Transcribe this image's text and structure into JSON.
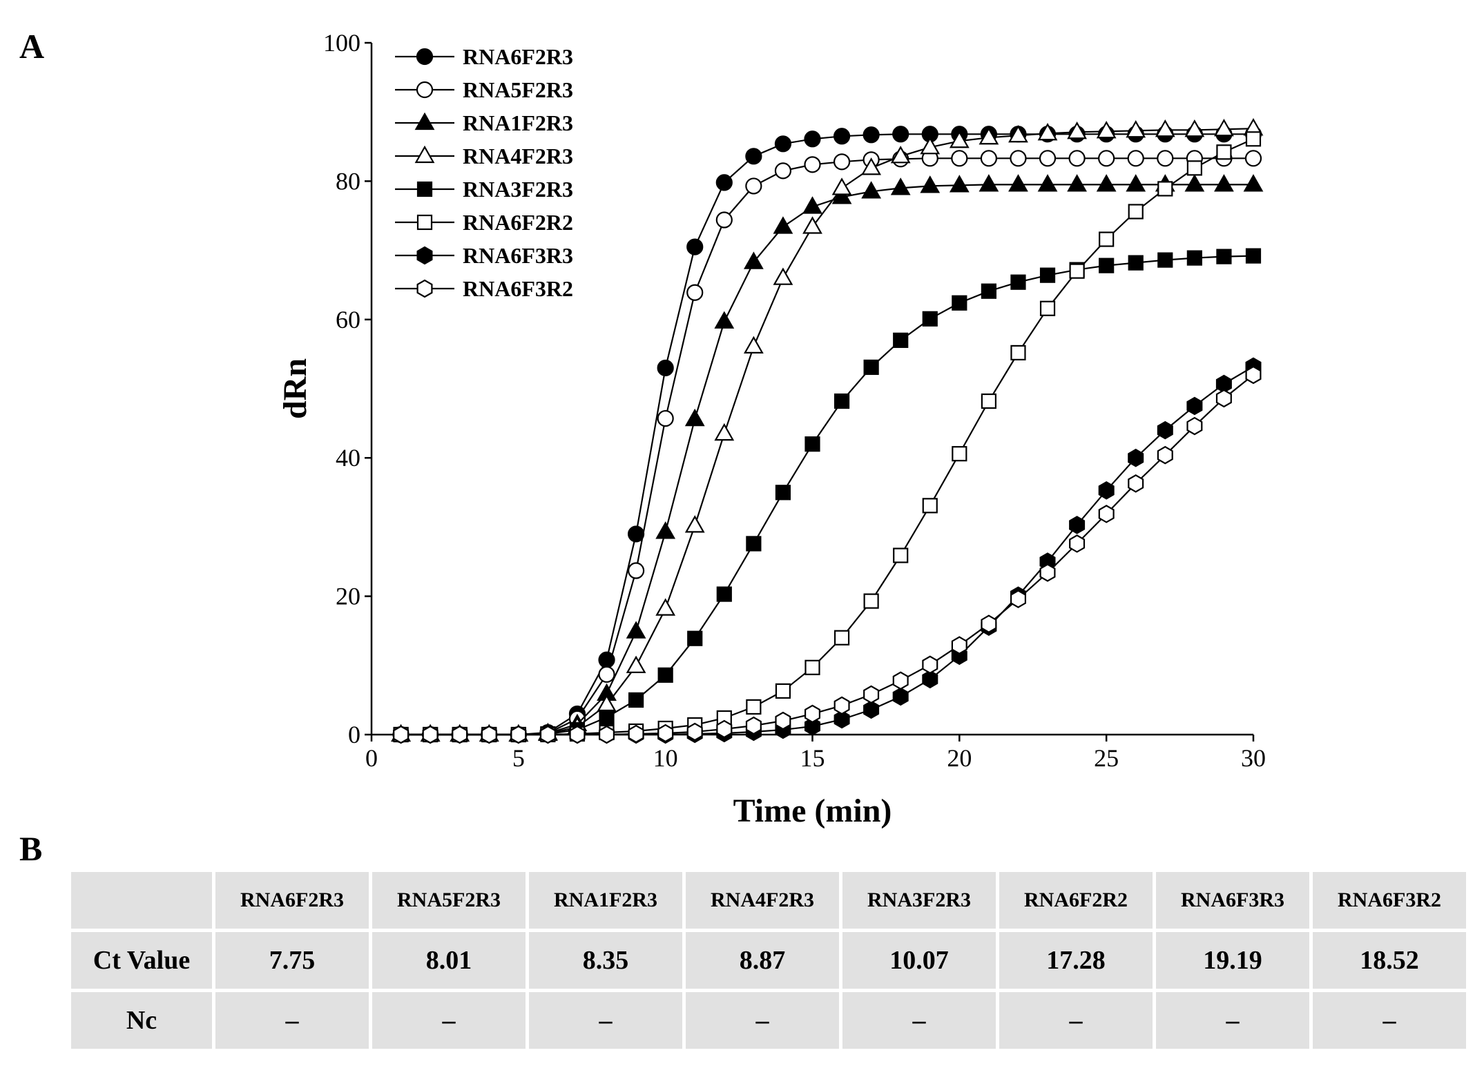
{
  "panels": {
    "a": "A",
    "b": "B"
  },
  "chart_data": {
    "type": "line",
    "title": "",
    "xlabel": "Time (min)",
    "ylabel": "dRn",
    "xlim": [
      0,
      30
    ],
    "ylim": [
      0,
      100
    ],
    "x_ticks": [
      0,
      5,
      10,
      15,
      20,
      25,
      30
    ],
    "y_ticks": [
      0,
      20,
      40,
      60,
      80,
      100
    ],
    "grid": false,
    "legend_position": "top-left",
    "x": [
      1,
      2,
      3,
      4,
      5,
      6,
      7,
      8,
      9,
      10,
      11,
      12,
      13,
      14,
      15,
      16,
      17,
      18,
      19,
      20,
      21,
      22,
      23,
      24,
      25,
      26,
      27,
      28,
      29,
      30
    ],
    "series": [
      {
        "name": "RNA6F2R3",
        "marker": "circle",
        "filled": true,
        "values": [
          0,
          0,
          0,
          0,
          0,
          0.3,
          3,
          10.8,
          29,
          53,
          70.5,
          79.8,
          83.6,
          85.4,
          86.1,
          86.5,
          86.7,
          86.8,
          86.8,
          86.8,
          86.8,
          86.8,
          86.8,
          86.8,
          86.8,
          86.8,
          86.8,
          86.8,
          86.8,
          86.8
        ]
      },
      {
        "name": "RNA5F2R3",
        "marker": "circle",
        "filled": false,
        "values": [
          0,
          0,
          0,
          0,
          0,
          0.2,
          2.3,
          8.7,
          23.7,
          45.7,
          63.9,
          74.4,
          79.3,
          81.5,
          82.4,
          82.8,
          83.1,
          83.2,
          83.3,
          83.3,
          83.3,
          83.3,
          83.3,
          83.3,
          83.3,
          83.3,
          83.3,
          83.3,
          83.3,
          83.3
        ]
      },
      {
        "name": "RNA1F2R3",
        "marker": "triangle",
        "filled": true,
        "values": [
          0,
          0,
          0,
          0,
          0,
          0.2,
          1.5,
          5.9,
          14.9,
          29.3,
          45.6,
          59.7,
          68.3,
          73.4,
          76.3,
          77.7,
          78.5,
          79,
          79.3,
          79.4,
          79.5,
          79.5,
          79.5,
          79.5,
          79.5,
          79.5,
          79.5,
          79.5,
          79.5,
          79.5
        ]
      },
      {
        "name": "RNA4F2R3",
        "marker": "triangle",
        "filled": false,
        "values": [
          0,
          0,
          0,
          0,
          0,
          0.1,
          1.1,
          4.3,
          9.9,
          18.2,
          30.2,
          43.5,
          56.1,
          66,
          73.4,
          79,
          81.9,
          83.6,
          84.9,
          85.8,
          86.3,
          86.6,
          86.9,
          87.1,
          87.2,
          87.3,
          87.4,
          87.4,
          87.5,
          87.6
        ]
      },
      {
        "name": "RNA3F2R3",
        "marker": "square",
        "filled": true,
        "values": [
          0,
          0,
          0,
          0,
          0,
          0.1,
          0.7,
          2.5,
          5,
          8.6,
          13.9,
          20.3,
          27.6,
          35,
          42,
          48.2,
          53.1,
          57,
          60.1,
          62.4,
          64.1,
          65.4,
          66.4,
          67.2,
          67.8,
          68.2,
          68.6,
          68.9,
          69.1,
          69.2
        ]
      },
      {
        "name": "RNA6F2R2",
        "marker": "square",
        "filled": false,
        "values": [
          0,
          0,
          0,
          0,
          0,
          0,
          0.1,
          0.3,
          0.5,
          0.9,
          1.4,
          2.4,
          4,
          6.3,
          9.7,
          14,
          19.3,
          25.9,
          33.1,
          40.6,
          48.2,
          55.2,
          61.6,
          67,
          71.6,
          75.6,
          78.9,
          81.9,
          84.2,
          86.1
        ]
      },
      {
        "name": "RNA6F3R3",
        "marker": "hexagon",
        "filled": true,
        "values": [
          0,
          0,
          0,
          0,
          0,
          0,
          0,
          0,
          0,
          0,
          0.1,
          0.2,
          0.4,
          0.7,
          1.2,
          2.2,
          3.6,
          5.5,
          8,
          11.4,
          15.6,
          20.1,
          25,
          30.3,
          35.3,
          40,
          44,
          47.5,
          50.7,
          53.2
        ]
      },
      {
        "name": "RNA6F3R2",
        "marker": "hexagon",
        "filled": false,
        "values": [
          0,
          0,
          0,
          0,
          0,
          0,
          0,
          0,
          0.1,
          0.2,
          0.4,
          0.8,
          1.3,
          2,
          3,
          4.2,
          5.8,
          7.8,
          10.1,
          12.9,
          16,
          19.6,
          23.4,
          27.6,
          31.9,
          36.3,
          40.4,
          44.6,
          48.6,
          52
        ]
      }
    ]
  },
  "table": {
    "columns": [
      "RNA6F2R3",
      "RNA5F2R3",
      "RNA1F2R3",
      "RNA4F2R3",
      "RNA3F2R3",
      "RNA6F2R2",
      "RNA6F3R3",
      "RNA6F3R2"
    ],
    "rows": [
      {
        "label": "Ct Value",
        "values": [
          "7.75",
          "8.01",
          "8.35",
          "8.87",
          "10.07",
          "17.28",
          "19.19",
          "18.52"
        ]
      },
      {
        "label": "Nc",
        "values": [
          "–",
          "–",
          "–",
          "–",
          "–",
          "–",
          "–",
          "–"
        ]
      }
    ]
  }
}
